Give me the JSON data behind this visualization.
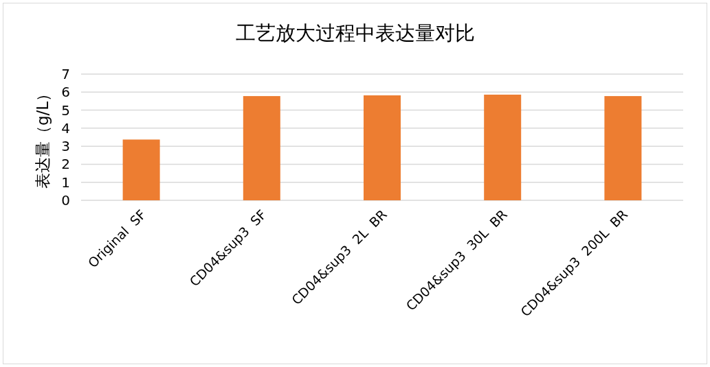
{
  "chart_data": {
    "type": "bar",
    "title": "工艺放大过程中表达量对比",
    "ylabel": "表达量（g/L）",
    "categories": [
      "Original  SF",
      "CD04&sup3  SF",
      "CD04&sup3  2L  BR",
      "CD04&sup3  30L  BR",
      "CD04&sup3  200L  BR"
    ],
    "values": [
      3.37,
      5.78,
      5.82,
      5.86,
      5.78
    ],
    "color": "#ed7d31",
    "ylim": [
      0,
      7
    ],
    "yticks": [
      0,
      1,
      2,
      3,
      4,
      5,
      6,
      7
    ],
    "grid": "y"
  }
}
